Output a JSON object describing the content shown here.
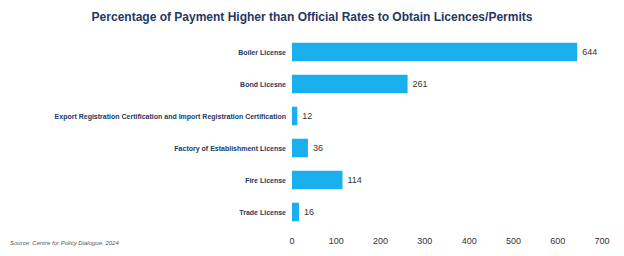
{
  "chart_data": {
    "type": "bar",
    "orientation": "horizontal",
    "title": "Percentage of Payment Higher than Official Rates to Obtain Licences/Permits",
    "annotation": "Source: Centre for Policy Dialogue, 2024",
    "categories": [
      "Boiler License",
      "Bond Licesne",
      "Export Registration Certification and Import Registration Certification",
      "Factory of Establishment License",
      "Fire License",
      "Trade License"
    ],
    "values": [
      644,
      261,
      12,
      36,
      114,
      16
    ],
    "color": "#1ab0ef",
    "xlim": [
      0,
      700
    ],
    "xticks": [
      0,
      100,
      200,
      300,
      400,
      500,
      600,
      700
    ],
    "grid": false,
    "data_labels": true
  }
}
